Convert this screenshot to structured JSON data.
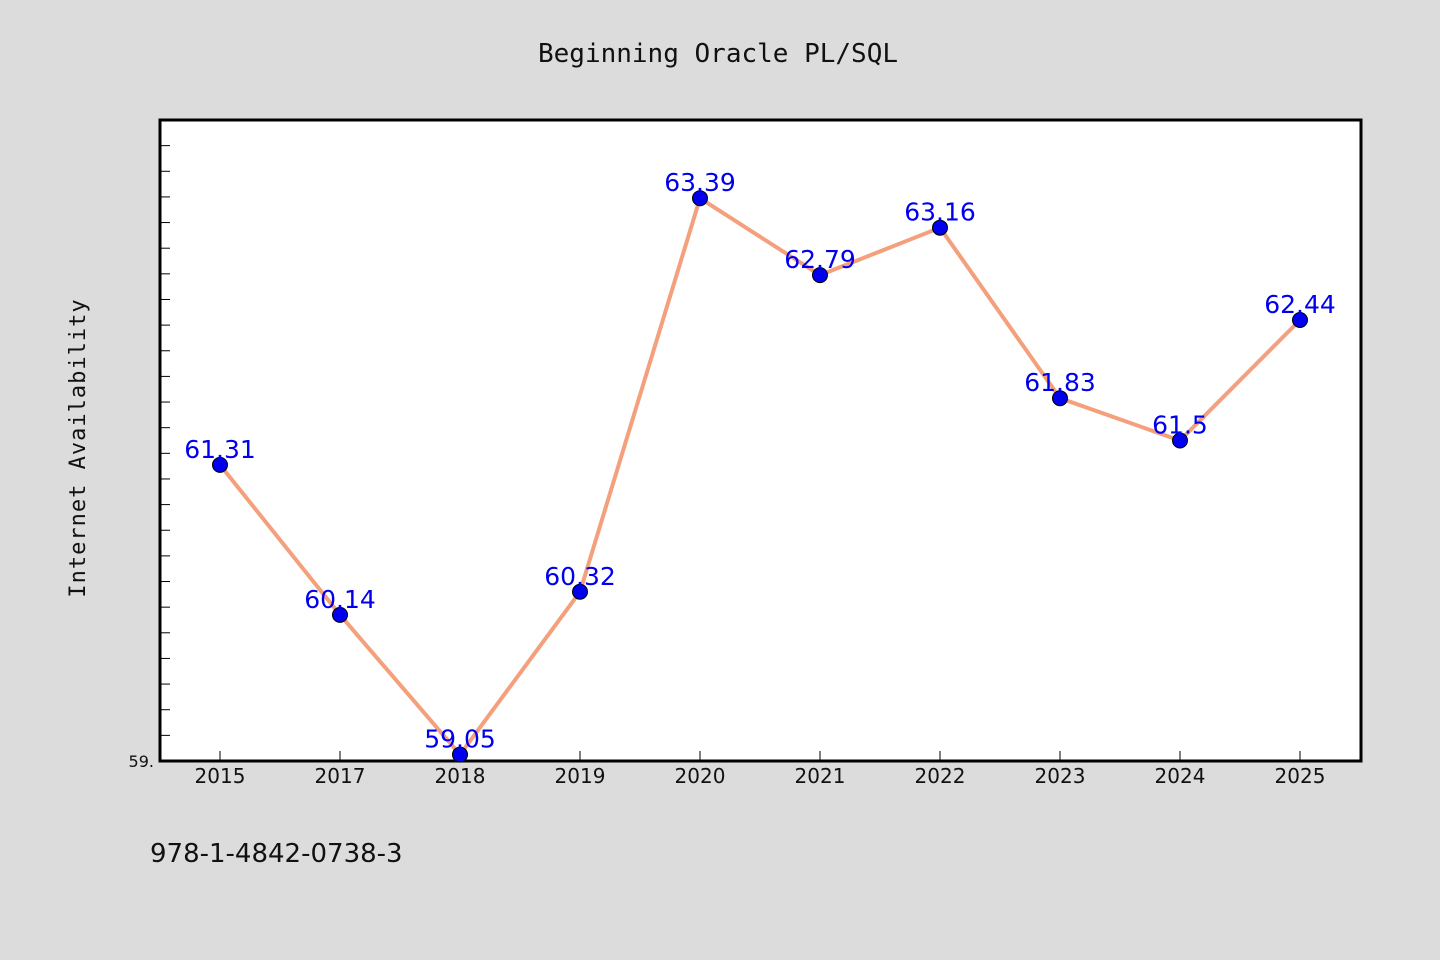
{
  "chart_data": {
    "type": "line",
    "title": "Beginning Oracle PL/SQL",
    "ylabel": "Internet Availability",
    "xlabel": "",
    "categories": [
      "2015",
      "2017",
      "2018",
      "2019",
      "2020",
      "2021",
      "2022",
      "2023",
      "2024",
      "2025"
    ],
    "values": [
      61.31,
      60.14,
      59.05,
      60.32,
      63.39,
      62.79,
      63.16,
      61.83,
      61.5,
      62.44
    ],
    "data_labels": [
      "61.31",
      "60.14",
      "59.05",
      "60.32",
      "63.39",
      "62.79",
      "63.16",
      "61.83",
      "61.5",
      "62.44"
    ],
    "ylim": [
      59.0,
      64.0
    ],
    "y_tick_label": "59.",
    "grid": false,
    "line_color": "#f4a07c",
    "marker_color": "#0000ee",
    "label_color": "#0000ee"
  },
  "footer": {
    "isbn": "978-1-4842-0738-3"
  }
}
